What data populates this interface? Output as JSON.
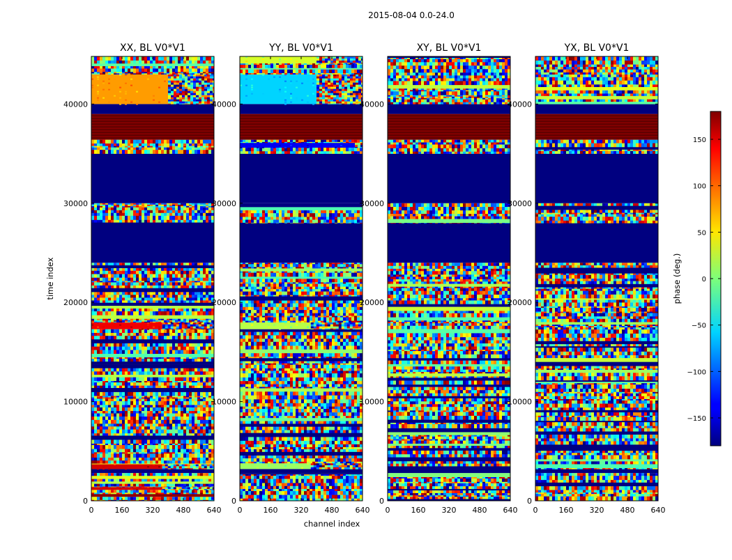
{
  "chart_data": {
    "type": "heatmap",
    "suptitle": "2015-08-04 0.0-24.0",
    "xlabel": "channel index",
    "ylabel": "time index",
    "xlim": [
      0,
      640
    ],
    "ylim": [
      0,
      44800
    ],
    "x_ticks": [
      0,
      160,
      320,
      480,
      640
    ],
    "y_ticks": [
      0,
      10000,
      20000,
      30000,
      40000
    ],
    "colorbar": {
      "label": "phase (deg.)",
      "colormap": "jet",
      "vmin": -180,
      "vmax": 180,
      "ticks": [
        150,
        100,
        50,
        0,
        -50,
        -100,
        -150
      ],
      "tick_labels": [
        "150",
        "100",
        "50",
        "0",
        "−50",
        "−100",
        "−150"
      ]
    },
    "panels": [
      {
        "title": "XX, BL V0*V1",
        "bands": [
          {
            "t0": 0,
            "t1": 400,
            "kind": "noise"
          },
          {
            "t0": 400,
            "t1": 700,
            "kind": "solid",
            "value": 175
          },
          {
            "t0": 700,
            "t1": 1100,
            "kind": "noise"
          },
          {
            "t0": 1100,
            "t1": 1400,
            "kind": "partial",
            "value": 150,
            "split": 370
          },
          {
            "t0": 1400,
            "t1": 2800,
            "kind": "noise"
          },
          {
            "t0": 2800,
            "t1": 3200,
            "kind": "solid",
            "value": -180
          },
          {
            "t0": 3200,
            "t1": 3700,
            "kind": "partial",
            "value": 150,
            "split": 370
          },
          {
            "t0": 3700,
            "t1": 17300,
            "kind": "noise"
          },
          {
            "t0": 17300,
            "t1": 18000,
            "kind": "partial",
            "value": 140,
            "split": 370
          },
          {
            "t0": 18000,
            "t1": 24000,
            "kind": "noise"
          },
          {
            "t0": 24000,
            "t1": 28000,
            "kind": "solid",
            "value": -180
          },
          {
            "t0": 28000,
            "t1": 30000,
            "kind": "noise"
          },
          {
            "t0": 30000,
            "t1": 35000,
            "kind": "solid",
            "value": -180
          },
          {
            "t0": 35000,
            "t1": 36400,
            "kind": "noise"
          },
          {
            "t0": 36400,
            "t1": 39000,
            "kind": "stripes",
            "value": 180
          },
          {
            "t0": 39000,
            "t1": 40000,
            "kind": "solid",
            "value": -180
          },
          {
            "t0": 40000,
            "t1": 43000,
            "kind": "partial",
            "value": 80,
            "split": 400
          },
          {
            "t0": 43000,
            "t1": 44800,
            "kind": "noise"
          }
        ]
      },
      {
        "title": "YY, BL V0*V1",
        "bands": [
          {
            "t0": 0,
            "t1": 2800,
            "kind": "noise"
          },
          {
            "t0": 2800,
            "t1": 3200,
            "kind": "solid",
            "value": -180
          },
          {
            "t0": 3200,
            "t1": 3800,
            "kind": "partial",
            "value": 10,
            "split": 370
          },
          {
            "t0": 3800,
            "t1": 17300,
            "kind": "noise"
          },
          {
            "t0": 17300,
            "t1": 18000,
            "kind": "partial",
            "value": 20,
            "split": 370
          },
          {
            "t0": 18000,
            "t1": 24000,
            "kind": "noise"
          },
          {
            "t0": 24000,
            "t1": 28000,
            "kind": "solid",
            "value": -180
          },
          {
            "t0": 28000,
            "t1": 30000,
            "kind": "noise"
          },
          {
            "t0": 30000,
            "t1": 35000,
            "kind": "solid",
            "value": -180
          },
          {
            "t0": 35000,
            "t1": 35600,
            "kind": "noise"
          },
          {
            "t0": 35600,
            "t1": 36100,
            "kind": "partial",
            "value": -140,
            "split": 600
          },
          {
            "t0": 36100,
            "t1": 36400,
            "kind": "noise"
          },
          {
            "t0": 36400,
            "t1": 39000,
            "kind": "stripes",
            "value": 180
          },
          {
            "t0": 39000,
            "t1": 40000,
            "kind": "solid",
            "value": -180
          },
          {
            "t0": 40000,
            "t1": 43000,
            "kind": "partial",
            "value": -60,
            "split": 400
          },
          {
            "t0": 43000,
            "t1": 44100,
            "kind": "noise"
          },
          {
            "t0": 44100,
            "t1": 44800,
            "kind": "partial",
            "value": 30,
            "split": 400
          }
        ]
      },
      {
        "title": "XY, BL V0*V1",
        "bands": [
          {
            "t0": 0,
            "t1": 2800,
            "kind": "noise"
          },
          {
            "t0": 2800,
            "t1": 3200,
            "kind": "solid",
            "value": -180
          },
          {
            "t0": 3200,
            "t1": 24000,
            "kind": "noise"
          },
          {
            "t0": 24000,
            "t1": 28000,
            "kind": "solid",
            "value": -180
          },
          {
            "t0": 28000,
            "t1": 30000,
            "kind": "noise"
          },
          {
            "t0": 30000,
            "t1": 35000,
            "kind": "solid",
            "value": -180
          },
          {
            "t0": 35000,
            "t1": 36400,
            "kind": "noise"
          },
          {
            "t0": 36400,
            "t1": 39000,
            "kind": "stripes",
            "value": 180
          },
          {
            "t0": 39000,
            "t1": 40000,
            "kind": "solid",
            "value": -180
          },
          {
            "t0": 40000,
            "t1": 44800,
            "kind": "noise"
          }
        ]
      },
      {
        "title": "YX, BL V0*V1",
        "bands": [
          {
            "t0": 0,
            "t1": 2800,
            "kind": "noise"
          },
          {
            "t0": 2800,
            "t1": 3200,
            "kind": "solid",
            "value": -180
          },
          {
            "t0": 3200,
            "t1": 24000,
            "kind": "noise"
          },
          {
            "t0": 24000,
            "t1": 28000,
            "kind": "solid",
            "value": -180
          },
          {
            "t0": 28000,
            "t1": 30000,
            "kind": "noise"
          },
          {
            "t0": 30000,
            "t1": 35000,
            "kind": "solid",
            "value": -180
          },
          {
            "t0": 35000,
            "t1": 36400,
            "kind": "noise"
          },
          {
            "t0": 36400,
            "t1": 39000,
            "kind": "stripes",
            "value": 180
          },
          {
            "t0": 39000,
            "t1": 40000,
            "kind": "solid",
            "value": -180
          },
          {
            "t0": 40000,
            "t1": 44800,
            "kind": "noise"
          }
        ]
      }
    ]
  }
}
